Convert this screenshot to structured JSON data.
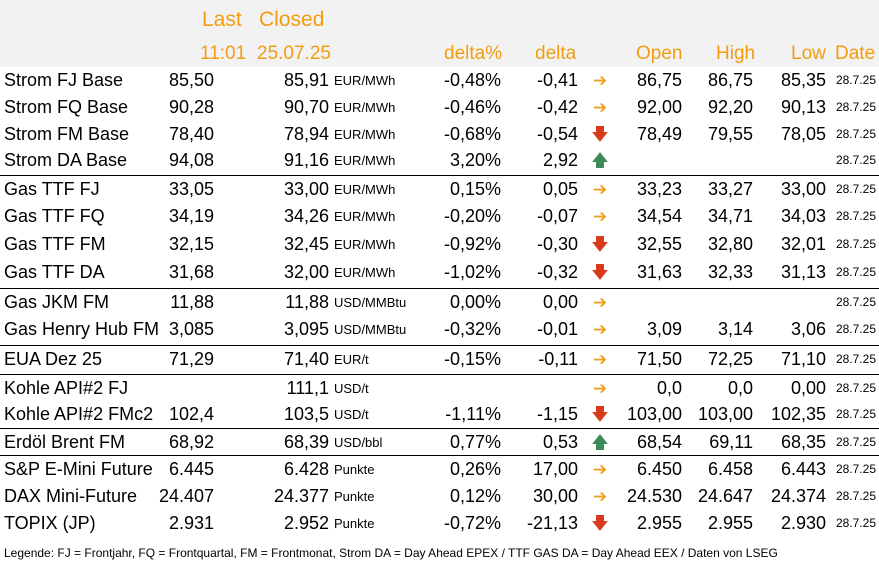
{
  "header": {
    "last_label": "Last",
    "closed_label": "Closed",
    "last_time": "11:01",
    "closed_date": "25.07.25",
    "delta_pct_label": "delta%",
    "delta_label": "delta",
    "open_label": "Open",
    "high_label": "High",
    "low_label": "Low",
    "date_label": "Date"
  },
  "rows": [
    {
      "name": "Strom FJ Base",
      "last": "85,50",
      "closed": "85,91",
      "unit": "EUR/MWh",
      "delta_pct": "-0,48%",
      "delta": "-0,41",
      "trend": "side",
      "open": "86,75",
      "high": "86,75",
      "low": "85,35",
      "date": "28.7.25",
      "sep": false
    },
    {
      "name": "Strom FQ Base",
      "last": "90,28",
      "closed": "90,70",
      "unit": "EUR/MWh",
      "delta_pct": "-0,46%",
      "delta": "-0,42",
      "trend": "side",
      "open": "92,00",
      "high": "92,20",
      "low": "90,13",
      "date": "28.7.25",
      "sep": false
    },
    {
      "name": "Strom FM Base",
      "last": "78,40",
      "closed": "78,94",
      "unit": "EUR/MWh",
      "delta_pct": "-0,68%",
      "delta": "-0,54",
      "trend": "down",
      "open": "78,49",
      "high": "79,55",
      "low": "78,05",
      "date": "28.7.25",
      "sep": false
    },
    {
      "name": "Strom DA Base",
      "last": "94,08",
      "closed": "91,16",
      "unit": "EUR/MWh",
      "delta_pct": "3,20%",
      "delta": "2,92",
      "trend": "up",
      "open": "",
      "high": "",
      "low": "",
      "date": "28.7.25",
      "sep": false
    },
    {
      "name": "Gas TTF FJ",
      "last": "33,05",
      "closed": "33,00",
      "unit": "EUR/MWh",
      "delta_pct": "0,15%",
      "delta": "0,05",
      "trend": "side",
      "open": "33,23",
      "high": "33,27",
      "low": "33,00",
      "date": "28.7.25",
      "sep": true
    },
    {
      "name": "Gas TTF FQ",
      "last": "34,19",
      "closed": "34,26",
      "unit": "EUR/MWh",
      "delta_pct": "-0,20%",
      "delta": "-0,07",
      "trend": "side",
      "open": "34,54",
      "high": "34,71",
      "low": "34,03",
      "date": "28.7.25",
      "sep": false
    },
    {
      "name": "Gas TTF FM",
      "last": "32,15",
      "closed": "32,45",
      "unit": "EUR/MWh",
      "delta_pct": "-0,92%",
      "delta": "-0,30",
      "trend": "down",
      "open": "32,55",
      "high": "32,80",
      "low": "32,01",
      "date": "28.7.25",
      "sep": false
    },
    {
      "name": "Gas TTF DA",
      "last": "31,68",
      "closed": "32,00",
      "unit": "EUR/MWh",
      "delta_pct": "-1,02%",
      "delta": "-0,32",
      "trend": "down",
      "open": "31,63",
      "high": "32,33",
      "low": "31,13",
      "date": "28.7.25",
      "sep": false
    },
    {
      "name": "Gas JKM FM",
      "last": "11,88",
      "closed": "11,88",
      "unit": "USD/MMBtu",
      "delta_pct": "0,00%",
      "delta": "0,00",
      "trend": "side",
      "open": "",
      "high": "",
      "low": "",
      "date": "28.7.25",
      "sep": true
    },
    {
      "name": "Gas Henry Hub FM",
      "last": "3,085",
      "closed": "3,095",
      "unit": "USD/MMBtu",
      "delta_pct": "-0,32%",
      "delta": "-0,01",
      "trend": "side",
      "open": "3,09",
      "high": "3,14",
      "low": "3,06",
      "date": "28.7.25",
      "sep": false
    },
    {
      "name": "EUA Dez 25",
      "last": "71,29",
      "closed": "71,40",
      "unit": "EUR/t",
      "delta_pct": "-0,15%",
      "delta": "-0,11",
      "trend": "side",
      "open": "71,50",
      "high": "72,25",
      "low": "71,10",
      "date": "28.7.25",
      "sep": true
    },
    {
      "name": "Kohle API#2 FJ",
      "last": "",
      "closed": "111,1",
      "unit": "USD/t",
      "delta_pct": "",
      "delta": "",
      "trend": "side",
      "open": "0,0",
      "high": "0,0",
      "low": "0,00",
      "date": "28.7.25",
      "sep": true
    },
    {
      "name": "Kohle API#2 FMc2",
      "last": "102,4",
      "closed": "103,5",
      "unit": "USD/t",
      "delta_pct": "-1,11%",
      "delta": "-1,15",
      "trend": "down",
      "open": "103,00",
      "high": "103,00",
      "low": "102,35",
      "date": "28.7.25",
      "sep": false
    },
    {
      "name": "Erdöl Brent FM",
      "last": "68,92",
      "closed": "68,39",
      "unit": "USD/bbl",
      "delta_pct": "0,77%",
      "delta": "0,53",
      "trend": "up",
      "open": "68,54",
      "high": "69,11",
      "low": "68,35",
      "date": "28.7.25",
      "sep": true
    },
    {
      "name": "S&P E-Mini Future",
      "last": "6.445",
      "closed": "6.428",
      "unit": "Punkte",
      "delta_pct": "0,26%",
      "delta": "17,00",
      "trend": "side",
      "open": "6.450",
      "high": "6.458",
      "low": "6.443",
      "date": "28.7.25",
      "sep": true
    },
    {
      "name": "DAX Mini-Future",
      "last": "24.407",
      "closed": "24.377",
      "unit": "Punkte",
      "delta_pct": "0,12%",
      "delta": "30,00",
      "trend": "side",
      "open": "24.530",
      "high": "24.647",
      "low": "24.374",
      "date": "28.7.25",
      "sep": false
    },
    {
      "name": "TOPIX (JP)",
      "last": "2.931",
      "closed": "2.952",
      "unit": "Punkte",
      "delta_pct": "-0,72%",
      "delta": "-21,13",
      "trend": "down",
      "open": "2.955",
      "high": "2.955",
      "low": "2.930",
      "date": "28.7.25",
      "sep": false
    }
  ],
  "arrows": {
    "side": "➔",
    "down": "🡇",
    "up": "🡅"
  },
  "legend": "Legende: FJ = Frontjahr, FQ = Frontquartal, FM = Frontmonat, Strom DA = Day Ahead EPEX / TTF GAS DA = Day Ahead EEX / Daten von LSEG"
}
